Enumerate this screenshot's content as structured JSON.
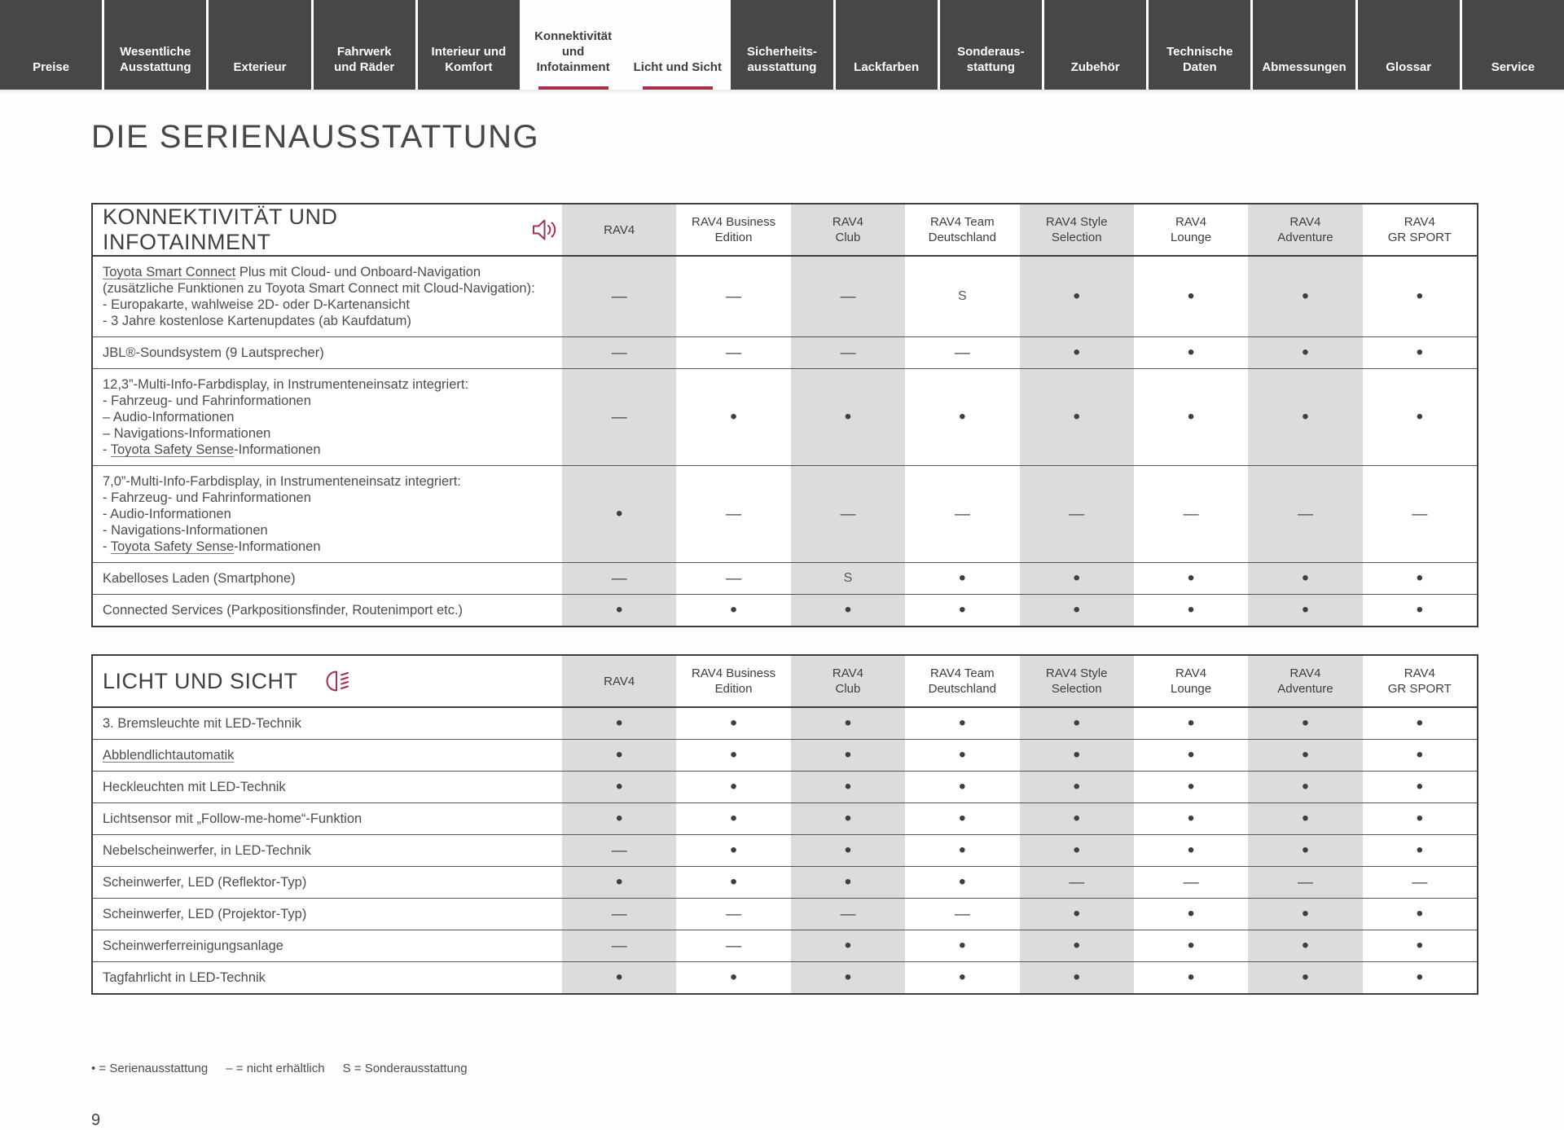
{
  "nav": {
    "tabs": [
      {
        "label": "Preise",
        "active": false
      },
      {
        "label": "Wesentliche\nAusstattung",
        "active": false
      },
      {
        "label": "Exterieur",
        "active": false
      },
      {
        "label": "Fahrwerk\nund Räder",
        "active": false
      },
      {
        "label": "Interieur und\nKomfort",
        "active": false
      },
      {
        "label": "Konnektivität\nund\nInfotainment",
        "active": true
      },
      {
        "label": "Licht und Sicht",
        "active": true
      },
      {
        "label": "Sicherheits-\nausstattung",
        "active": false
      },
      {
        "label": "Lackfarben",
        "active": false
      },
      {
        "label": "Sonderaus-\nstattung",
        "active": false
      },
      {
        "label": "Zubehör",
        "active": false
      },
      {
        "label": "Technische\nDaten",
        "active": false
      },
      {
        "label": "Abmessungen",
        "active": false
      },
      {
        "label": "Glossar",
        "active": false
      },
      {
        "label": "Service",
        "active": false
      }
    ]
  },
  "page_title": "DIE SERIENAUSSTATTUNG",
  "columns": [
    "RAV4",
    "RAV4 Business\nEdition",
    "RAV4\nClub",
    "RAV4 Team\nDeutschland",
    "RAV4 Style\nSelection",
    "RAV4\nLounge",
    "RAV4\nAdventure",
    "RAV4\nGR SPORT"
  ],
  "tables": [
    {
      "title": "KONNEKTIVITÄT UND INFOTAINMENT",
      "icon": "speaker-icon",
      "rows": [
        {
          "label": [
            [
              {
                "t": "Toyota Smart Connect",
                "u": true
              },
              {
                "t": " Plus mit Cloud- und Onboard-Navigation"
              }
            ],
            [
              {
                "t": "(zusätzliche Funktionen zu Toyota Smart Connect mit Cloud-Navigation):"
              }
            ],
            [
              {
                "t": "- Europakarte, wahlweise 2D- oder D-Kartenansicht"
              }
            ],
            [
              {
                "t": "- 3 Jahre kostenlose Kartenupdates (ab Kaufdatum)"
              }
            ]
          ],
          "values": [
            "—",
            "—",
            "—",
            "S",
            "•",
            "•",
            "•",
            "•"
          ]
        },
        {
          "label": [
            [
              {
                "t": "JBL®-Soundsystem (9 Lautsprecher)"
              }
            ]
          ],
          "values": [
            "—",
            "—",
            "—",
            "—",
            "•",
            "•",
            "•",
            "•"
          ]
        },
        {
          "label": [
            [
              {
                "t": "12,3”-Multi-Info-Farbdisplay, in Instrumenteneinsatz integriert:"
              }
            ],
            [
              {
                "t": "- Fahrzeug- und Fahrinformationen"
              }
            ],
            [
              {
                "t": "– Audio-Informationen"
              }
            ],
            [
              {
                "t": "– Navigations-Informationen"
              }
            ],
            [
              {
                "t": "- "
              },
              {
                "t": "Toyota Safety Sense",
                "u": true
              },
              {
                "t": "-Informationen"
              }
            ]
          ],
          "values": [
            "—",
            "•",
            "•",
            "•",
            "•",
            "•",
            "•",
            "•"
          ]
        },
        {
          "label": [
            [
              {
                "t": "7,0”-Multi-Info-Farbdisplay, in Instrumenteneinsatz integriert:"
              }
            ],
            [
              {
                "t": "- Fahrzeug- und Fahrinformationen"
              }
            ],
            [
              {
                "t": "- Audio-Informationen"
              }
            ],
            [
              {
                "t": "- Navigations-Informationen"
              }
            ],
            [
              {
                "t": "- "
              },
              {
                "t": "Toyota Safety Sense",
                "u": true
              },
              {
                "t": "-Informationen"
              }
            ]
          ],
          "values": [
            "•",
            "—",
            "—",
            "—",
            "—",
            "—",
            "—",
            "—"
          ]
        },
        {
          "label": [
            [
              {
                "t": "Kabelloses Laden (Smartphone)"
              }
            ]
          ],
          "values": [
            "—",
            "—",
            "S",
            "•",
            "•",
            "•",
            "•",
            "•"
          ]
        },
        {
          "label": [
            [
              {
                "t": "Connected Services (Parkpositionsfinder, Routenimport etc.)"
              }
            ]
          ],
          "values": [
            "•",
            "•",
            "•",
            "•",
            "•",
            "•",
            "•",
            "•"
          ]
        }
      ]
    },
    {
      "title": "LICHT UND SICHT",
      "icon": "headlight-icon",
      "rows": [
        {
          "label": [
            [
              {
                "t": "3. Bremsleuchte mit LED-Technik"
              }
            ]
          ],
          "values": [
            "•",
            "•",
            "•",
            "•",
            "•",
            "•",
            "•",
            "•"
          ]
        },
        {
          "label": [
            [
              {
                "t": "Abblendlichtautomatik",
                "u": true
              }
            ]
          ],
          "values": [
            "•",
            "•",
            "•",
            "•",
            "•",
            "•",
            "•",
            "•"
          ]
        },
        {
          "label": [
            [
              {
                "t": "Heckleuchten mit LED-Technik"
              }
            ]
          ],
          "values": [
            "•",
            "•",
            "•",
            "•",
            "•",
            "•",
            "•",
            "•"
          ]
        },
        {
          "label": [
            [
              {
                "t": "Lichtsensor mit „Follow-me-home“-Funktion"
              }
            ]
          ],
          "values": [
            "•",
            "•",
            "•",
            "•",
            "•",
            "•",
            "•",
            "•"
          ]
        },
        {
          "label": [
            [
              {
                "t": "Nebelscheinwerfer, in LED-Technik"
              }
            ]
          ],
          "values": [
            "—",
            "•",
            "•",
            "•",
            "•",
            "•",
            "•",
            "•"
          ]
        },
        {
          "label": [
            [
              {
                "t": "Scheinwerfer, LED (Reflektor-Typ)"
              }
            ]
          ],
          "values": [
            "•",
            "•",
            "•",
            "•",
            "—",
            "—",
            "—",
            "—"
          ]
        },
        {
          "label": [
            [
              {
                "t": "Scheinwerfer, LED (Projektor-Typ)"
              }
            ]
          ],
          "values": [
            "—",
            "—",
            "—",
            "—",
            "•",
            "•",
            "•",
            "•"
          ]
        },
        {
          "label": [
            [
              {
                "t": "Scheinwerferreinigungsanlage"
              }
            ]
          ],
          "values": [
            "—",
            "—",
            "•",
            "•",
            "•",
            "•",
            "•",
            "•"
          ]
        },
        {
          "label": [
            [
              {
                "t": "Tagfahrlicht in LED-Technik"
              }
            ]
          ],
          "values": [
            "•",
            "•",
            "•",
            "•",
            "•",
            "•",
            "•",
            "•"
          ]
        }
      ]
    }
  ],
  "legend": {
    "items": [
      "• = Serienausstattung",
      "– = nicht erhältlich",
      "S = Sonderausstattung"
    ]
  },
  "page_number": "9",
  "colors": {
    "accent_red": "#a5304a",
    "tab_dark": "#484745",
    "stripe_gray": "#dcdcdc"
  }
}
